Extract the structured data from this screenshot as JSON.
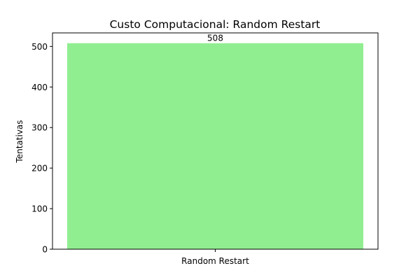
{
  "chart_data": {
    "type": "bar",
    "title": "Custo Computacional: Random Restart",
    "xlabel": "",
    "ylabel": "Tentativas",
    "categories": [
      "Random Restart"
    ],
    "values": [
      508
    ],
    "data_labels": [
      "508"
    ],
    "ylim": [
      0,
      533.4
    ],
    "yticks": [
      0,
      100,
      200,
      300,
      400,
      500
    ],
    "bar_color": "#90ee90",
    "grid": false
  }
}
